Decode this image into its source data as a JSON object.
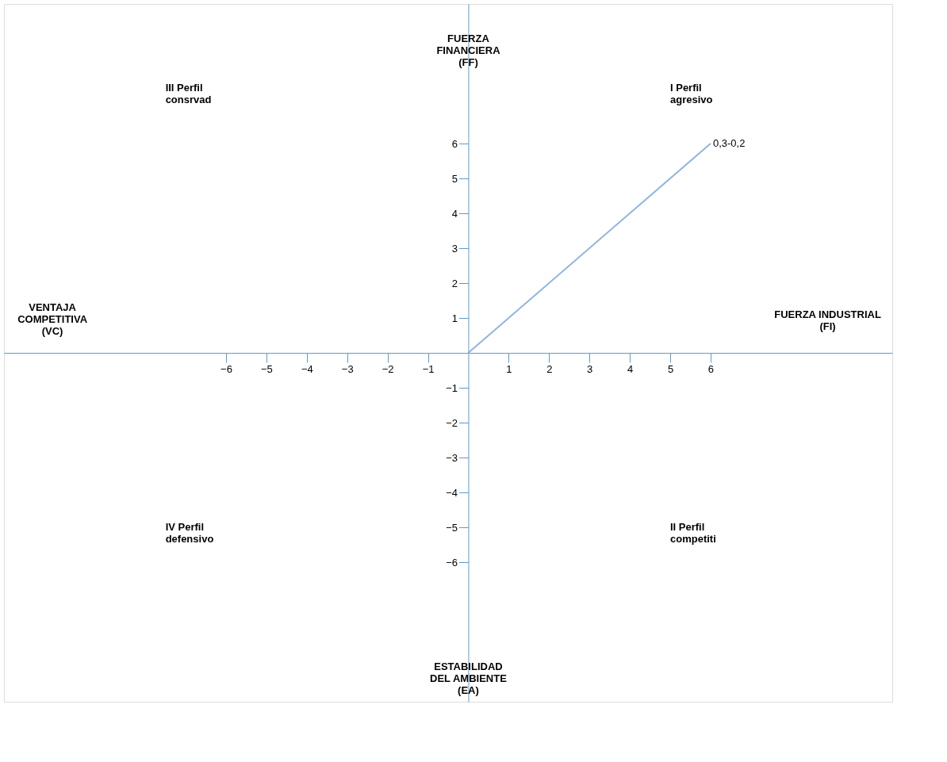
{
  "chart_data": {
    "type": "line",
    "x": [
      0,
      6
    ],
    "series": [
      {
        "color": "#8db4e2",
        "values": [
          0,
          6
        ]
      }
    ],
    "xlim": [
      -11.5,
      10.5
    ],
    "ylim": [
      -10,
      10
    ],
    "xticks": [
      -6,
      -5,
      -4,
      -3,
      -2,
      -1,
      1,
      2,
      3,
      4,
      5,
      6
    ],
    "yticks": [
      -6,
      -5,
      -4,
      -3,
      -2,
      -1,
      1,
      2,
      3,
      4,
      5,
      6
    ],
    "xlabel": "FUERZA INDUSTRIAL\n(FI)",
    "ylabel": "FUERZA\nFINANCIERA\n(FF)",
    "annotations": [
      {
        "text": "0,3-0,2",
        "x": 6,
        "y": 6
      },
      "III Perfil\nconsrvad",
      "I Perfil\nagresivo",
      "IV Perfil\ndefensivo",
      "II Perfil\ncompetiti",
      "VENTAJA\nCOMPETITIVA\n(VC)",
      "ESTABILIDAD\nDEL AMBIENTE\n(EA)"
    ],
    "grid": false,
    "marker": "none",
    "line_style": "solid"
  }
}
